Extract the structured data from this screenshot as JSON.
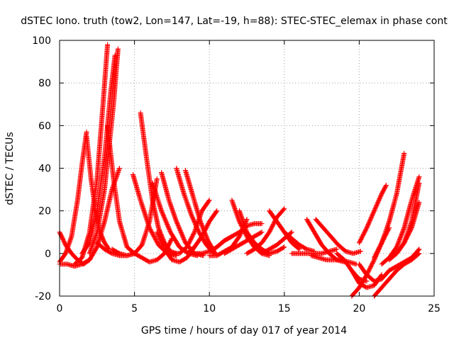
{
  "chart_data": {
    "type": "scatter",
    "title": "dSTEC Iono. truth (tow2, Lon=147, Lat=-19, h=88): STEC-STEC_elemax in phase cont",
    "xlabel": "GPS time / hours of day 017 of year 2014",
    "ylabel": "dSTEC  / TECUs",
    "xlim": [
      0,
      25
    ],
    "ylim": [
      -20,
      100
    ],
    "xticks": [
      0,
      5,
      10,
      15,
      20,
      25
    ],
    "yticks": [
      -20,
      0,
      20,
      40,
      60,
      80,
      100
    ],
    "grid": true,
    "marker": "plus",
    "color": "#ff0000",
    "series": [
      {
        "x": [
          0.0,
          0.4,
          0.8,
          1.2,
          1.5,
          1.8
        ],
        "y": [
          -4,
          0,
          8,
          25,
          42,
          57
        ]
      },
      {
        "x": [
          0.0,
          0.4,
          0.8,
          1.2,
          1.6,
          2.0
        ],
        "y": [
          10,
          4,
          0,
          -3,
          -5,
          -3
        ]
      },
      {
        "x": [
          0.0,
          0.5,
          1.0,
          1.5,
          2.0,
          2.5,
          3.0,
          3.5,
          4.0
        ],
        "y": [
          -5,
          -5,
          -6,
          -5,
          -3,
          3,
          15,
          30,
          40
        ]
      },
      {
        "x": [
          1.8,
          2.1,
          2.4,
          2.7,
          3.0,
          3.3
        ],
        "y": [
          55,
          35,
          20,
          10,
          5,
          2
        ]
      },
      {
        "x": [
          1.0,
          1.5,
          2.0,
          2.5,
          2.9,
          3.2
        ],
        "y": [
          -5,
          -2,
          10,
          35,
          70,
          98
        ]
      },
      {
        "x": [
          1.5,
          2.0,
          2.5,
          3.0,
          3.4,
          3.7
        ],
        "y": [
          0,
          5,
          20,
          45,
          75,
          93
        ]
      },
      {
        "x": [
          2.0,
          2.5,
          3.0,
          3.3,
          3.6,
          3.9
        ],
        "y": [
          0,
          10,
          30,
          50,
          70,
          96
        ]
      },
      {
        "x": [
          3.2,
          3.6,
          4.0,
          4.5,
          5.0
        ],
        "y": [
          60,
          35,
          15,
          3,
          0
        ]
      },
      {
        "x": [
          2.5,
          3.0,
          3.5,
          4.0,
          4.5,
          5.0
        ],
        "y": [
          5,
          2,
          0,
          -1,
          -1,
          0
        ]
      },
      {
        "x": [
          5.4,
          5.8,
          6.2,
          6.6,
          7.0,
          7.4,
          7.8
        ],
        "y": [
          66,
          45,
          25,
          12,
          5,
          1,
          0
        ]
      },
      {
        "x": [
          4.9,
          5.4,
          6.0,
          6.6,
          7.2,
          7.8
        ],
        "y": [
          37,
          25,
          12,
          4,
          0,
          -1
        ]
      },
      {
        "x": [
          3.5,
          4.0,
          4.5,
          5.0,
          5.5,
          6.0,
          6.5
        ],
        "y": [
          2,
          0,
          -1,
          0,
          4,
          15,
          35
        ]
      },
      {
        "x": [
          5.0,
          5.5,
          6.0,
          6.5,
          7.0,
          7.5
        ],
        "y": [
          0,
          -2,
          -4,
          -3,
          0,
          7
        ]
      },
      {
        "x": [
          6.2,
          6.8,
          7.4,
          8.0,
          8.6,
          9.2
        ],
        "y": [
          33,
          20,
          10,
          3,
          0,
          -1
        ]
      },
      {
        "x": [
          6.8,
          7.3,
          7.8,
          8.4,
          9.0,
          9.6
        ],
        "y": [
          38,
          25,
          15,
          5,
          0,
          -1
        ]
      },
      {
        "x": [
          7.8,
          8.3,
          8.8,
          9.3,
          9.8,
          10.3
        ],
        "y": [
          40,
          28,
          18,
          10,
          4,
          0
        ]
      },
      {
        "x": [
          8.4,
          8.9,
          9.4,
          9.9,
          10.4
        ],
        "y": [
          39,
          27,
          15,
          6,
          0
        ]
      },
      {
        "x": [
          6.5,
          7.0,
          7.5,
          8.0,
          8.5,
          9.0
        ],
        "y": [
          10,
          2,
          -3,
          -4,
          -2,
          3
        ]
      },
      {
        "x": [
          7.5,
          8.0,
          8.5,
          9.0,
          9.5,
          10.0
        ],
        "y": [
          0,
          0,
          3,
          10,
          20,
          25
        ]
      },
      {
        "x": [
          8.5,
          9.0,
          9.5,
          10.0,
          10.5
        ],
        "y": [
          0,
          3,
          8,
          15,
          20
        ]
      },
      {
        "x": [
          9.0,
          9.5,
          10.0,
          10.5,
          11.0,
          11.5
        ],
        "y": [
          0,
          0,
          1,
          3,
          6,
          8
        ]
      },
      {
        "x": [
          10.0,
          10.5,
          11.0,
          11.5,
          12.0,
          12.5
        ],
        "y": [
          -1,
          -1,
          1,
          3,
          8,
          16
        ]
      },
      {
        "x": [
          11.5,
          12.0,
          12.5,
          13.0,
          13.5,
          14.0
        ],
        "y": [
          25,
          15,
          8,
          3,
          0,
          -1
        ]
      },
      {
        "x": [
          12.0,
          12.5,
          13.0,
          13.5,
          14.0,
          14.5,
          15.0
        ],
        "y": [
          20,
          10,
          5,
          2,
          0,
          1,
          3
        ]
      },
      {
        "x": [
          10.5,
          11.0,
          11.5,
          12.0,
          12.5,
          13.0,
          13.5
        ],
        "y": [
          3,
          6,
          8,
          10,
          13,
          14,
          14
        ]
      },
      {
        "x": [
          11.0,
          11.5,
          12.0,
          12.5,
          13.0,
          13.5
        ],
        "y": [
          0,
          2,
          4,
          6,
          8,
          10
        ]
      },
      {
        "x": [
          12.5,
          13.0,
          13.5,
          14.0,
          14.5,
          15.0
        ],
        "y": [
          0,
          2,
          5,
          10,
          17,
          21
        ]
      },
      {
        "x": [
          14.0,
          14.5,
          15.0,
          15.5,
          16.0
        ],
        "y": [
          20,
          15,
          10,
          5,
          2
        ]
      },
      {
        "x": [
          13.5,
          14.0,
          14.5,
          15.0,
          15.5
        ],
        "y": [
          0,
          2,
          4,
          7,
          10
        ]
      },
      {
        "x": [
          15.0,
          15.5,
          16.0,
          16.5,
          17.0
        ],
        "y": [
          10,
          7,
          4,
          2,
          1
        ]
      },
      {
        "x": [
          15.5,
          16.0,
          16.5,
          17.0,
          17.5,
          18.0,
          18.5
        ],
        "y": [
          0,
          0,
          0,
          0,
          0,
          1,
          2
        ]
      },
      {
        "x": [
          16.5,
          17.0,
          17.5,
          18.0,
          18.5,
          19.0
        ],
        "y": [
          16,
          10,
          4,
          0,
          -3,
          -4
        ]
      },
      {
        "x": [
          17.1,
          17.6,
          18.1,
          18.6,
          19.1,
          19.6,
          20.1
        ],
        "y": [
          16,
          12,
          8,
          4,
          1,
          0,
          1
        ]
      },
      {
        "x": [
          16.8,
          17.3,
          17.8,
          18.3,
          18.8,
          19.3,
          19.8
        ],
        "y": [
          -1,
          -2,
          -3,
          -3,
          -3,
          -4,
          -5
        ]
      },
      {
        "x": [
          18.5,
          19.0,
          19.5,
          20.0,
          20.5
        ],
        "y": [
          0,
          -3,
          -8,
          -12,
          -13
        ]
      },
      {
        "x": [
          19.5,
          20.0,
          20.5,
          21.0,
          21.5
        ],
        "y": [
          -8,
          -14,
          -16,
          -15,
          -10
        ]
      },
      {
        "x": [
          20.0,
          20.5,
          21.0,
          21.5,
          22.0
        ],
        "y": [
          -5,
          -10,
          -13,
          -12,
          -8
        ]
      },
      {
        "x": [
          20.0,
          20.5,
          21.0,
          21.5,
          21.8
        ],
        "y": [
          5,
          12,
          20,
          28,
          32
        ]
      },
      {
        "x": [
          19.5,
          20.0,
          20.5,
          21.0,
          21.5,
          22.0
        ],
        "y": [
          -20,
          -16,
          -10,
          -3,
          5,
          12
        ]
      },
      {
        "x": [
          21.0,
          21.5,
          22.0,
          22.5,
          23.0
        ],
        "y": [
          -2,
          5,
          15,
          28,
          47
        ]
      },
      {
        "x": [
          21.5,
          22.0,
          22.5,
          23.0,
          23.5,
          24.0
        ],
        "y": [
          -5,
          -2,
          3,
          12,
          25,
          36
        ]
      },
      {
        "x": [
          22.0,
          22.5,
          23.0,
          23.5,
          24.0
        ],
        "y": [
          -3,
          0,
          5,
          15,
          33
        ]
      },
      {
        "x": [
          21.0,
          21.5,
          22.0,
          22.5,
          23.0,
          23.5,
          24.0
        ],
        "y": [
          -20,
          -16,
          -12,
          -8,
          -5,
          -3,
          0
        ]
      },
      {
        "x": [
          22.0,
          22.5,
          23.0,
          23.5,
          24.0
        ],
        "y": [
          -8,
          -6,
          -4,
          -2,
          2
        ]
      },
      {
        "x": [
          22.5,
          23.0,
          23.5,
          24.0
        ],
        "y": [
          0,
          5,
          12,
          24
        ]
      }
    ]
  }
}
